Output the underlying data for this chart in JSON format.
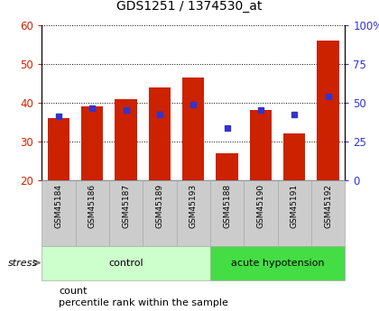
{
  "title": "GDS1251 / 1374530_at",
  "samples": [
    "GSM45184",
    "GSM45186",
    "GSM45187",
    "GSM45189",
    "GSM45193",
    "GSM45188",
    "GSM45190",
    "GSM45191",
    "GSM45192"
  ],
  "count_values": [
    36,
    39,
    41,
    44,
    46.5,
    27,
    38,
    32,
    56
  ],
  "percentile_values": [
    36.5,
    38.5,
    38,
    37,
    39.5,
    33.5,
    38,
    37,
    41.5
  ],
  "bar_bottom": 20,
  "ylim_left": [
    20,
    60
  ],
  "ylim_right": [
    0,
    100
  ],
  "yticks_left": [
    20,
    30,
    40,
    50,
    60
  ],
  "yticks_right": [
    0,
    25,
    50,
    75,
    100
  ],
  "ytick_labels_right": [
    "0",
    "25",
    "50",
    "75",
    "100%"
  ],
  "bar_color": "#cc2200",
  "dot_color": "#3333cc",
  "groups": [
    {
      "label": "control",
      "start": 0,
      "end": 5,
      "color": "#ccffcc"
    },
    {
      "label": "acute hypotension",
      "start": 5,
      "end": 9,
      "color": "#44dd44"
    }
  ],
  "stress_label": "stress",
  "legend_items": [
    {
      "color": "#cc2200",
      "label": "count"
    },
    {
      "color": "#3333cc",
      "label": "percentile rank within the sample"
    }
  ],
  "bar_width": 0.65,
  "tick_label_color_left": "#cc2200",
  "tick_label_color_right": "#3333cc",
  "sample_box_color": "#cccccc",
  "sample_box_edge_color": "#aaaaaa"
}
